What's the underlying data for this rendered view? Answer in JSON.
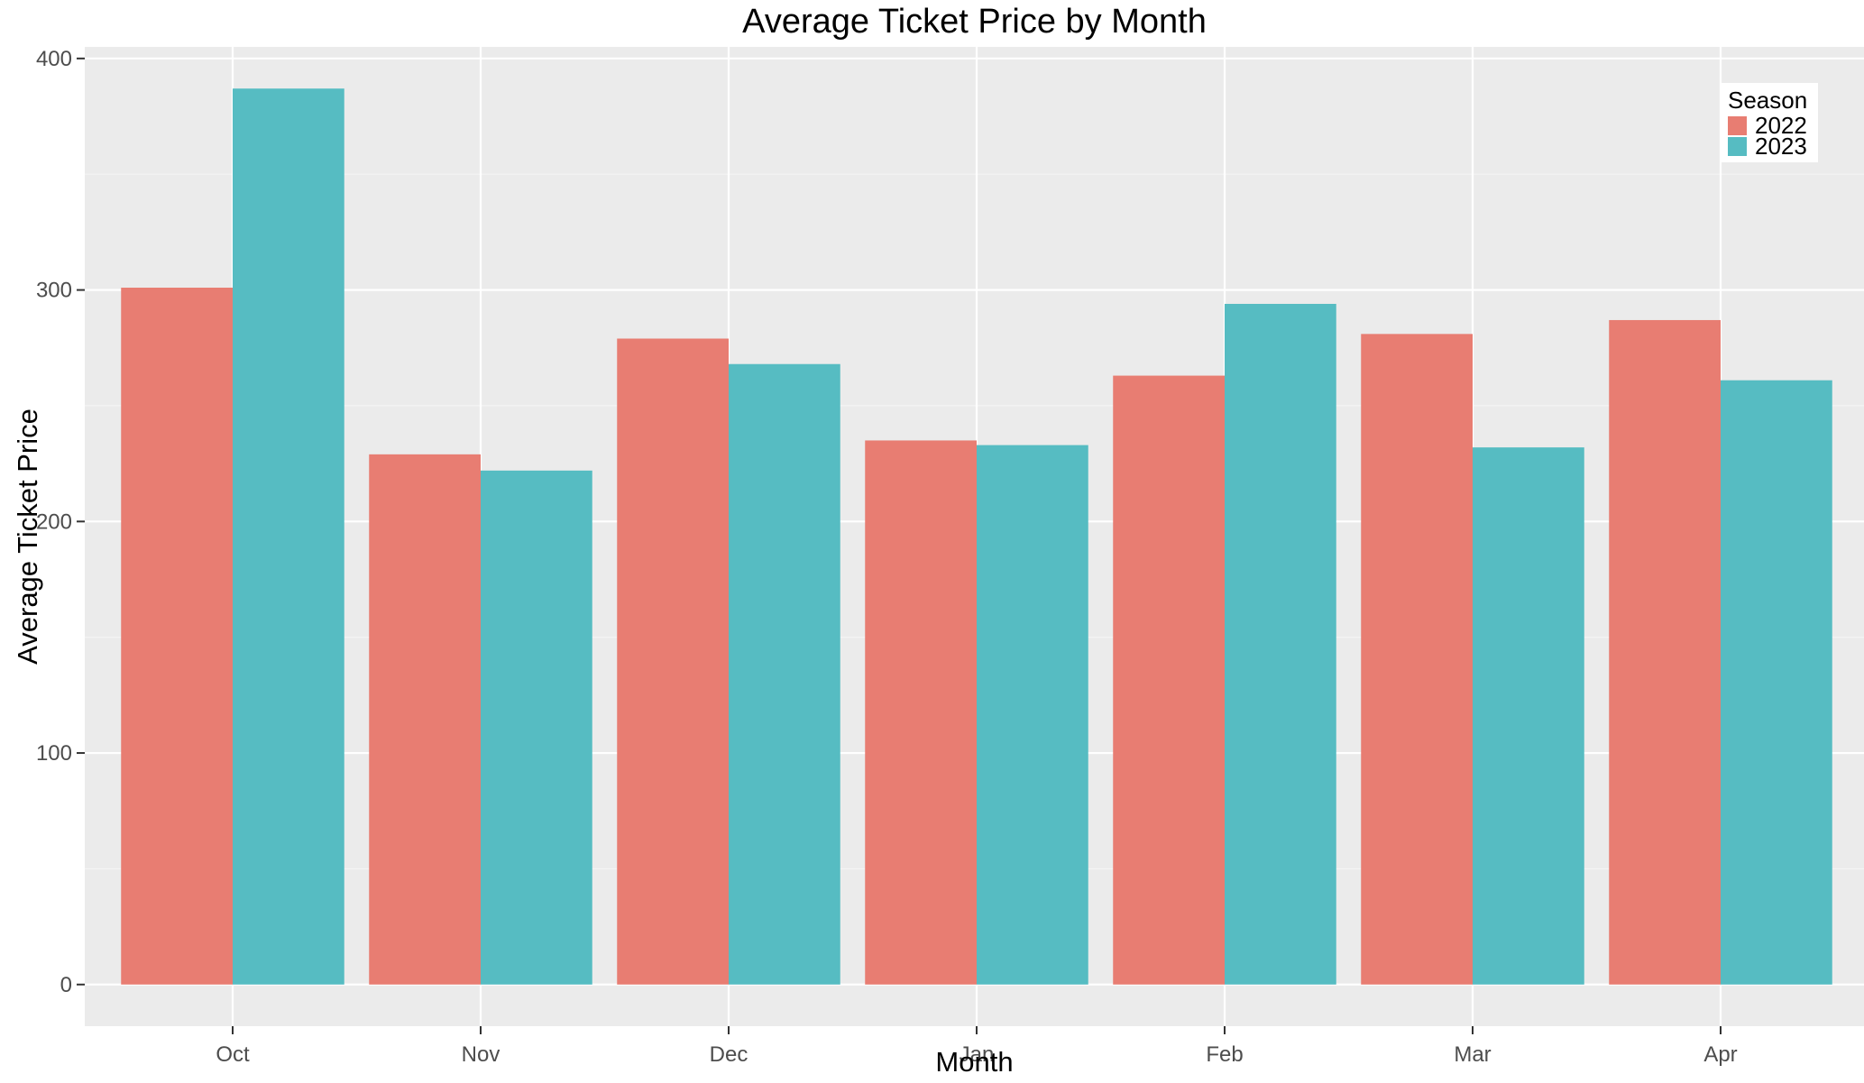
{
  "chart_data": {
    "type": "bar",
    "title": "Average Ticket Price by Month",
    "xlabel": "Month",
    "ylabel": "Average Ticket Price",
    "categories": [
      "Oct",
      "Nov",
      "Dec",
      "Jan",
      "Feb",
      "Mar",
      "Apr"
    ],
    "series": [
      {
        "name": "2022",
        "color": "#E87D72",
        "values": [
          301,
          229,
          279,
          235,
          263,
          281,
          287
        ]
      },
      {
        "name": "2023",
        "color": "#56BCC2",
        "values": [
          387,
          222,
          268,
          233,
          294,
          232,
          261
        ]
      }
    ],
    "ylim": [
      -18,
      405
    ],
    "yticks": [
      0,
      100,
      200,
      300,
      400
    ],
    "grid": true,
    "legend": {
      "title": "Season",
      "position": "top-right"
    },
    "colors": {
      "panel_bg": "#EBEBEB",
      "grid": "#FFFFFF"
    }
  }
}
